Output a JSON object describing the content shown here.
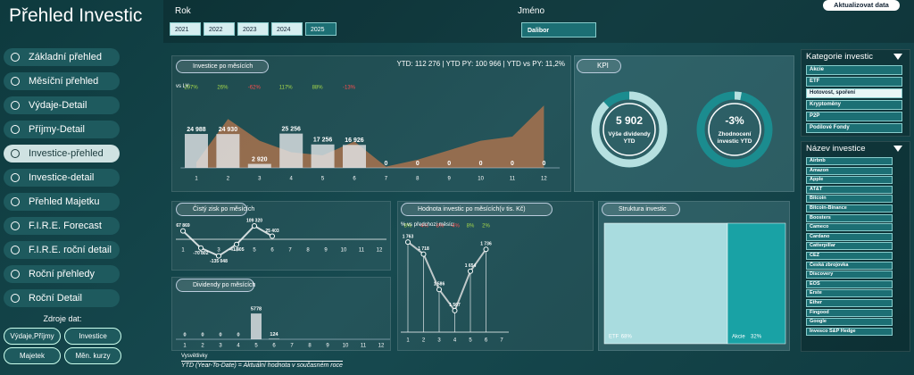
{
  "header": {
    "title": "Přehled Investic",
    "year_label": "Rok",
    "years": [
      "2021",
      "2022",
      "2023",
      "2024",
      "2025"
    ],
    "year_selected": [
      true,
      true,
      true,
      true,
      false
    ],
    "name_label": "Jméno",
    "name": "Dalibor",
    "refresh": "Aktualizovat data"
  },
  "nav": {
    "items": [
      "Základní přehled",
      "Měsíční přehled",
      "Výdaje-Detail",
      "Příjmy-Detail",
      "Investice-přehled",
      "Investice-detail",
      "Přehled Majetku",
      "F.I.R.E. Forecast",
      "F.I.R.E. roční detail",
      "Roční přehledy",
      "Roční Detail"
    ],
    "active_index": 4
  },
  "sources": {
    "title": "Zdroje dat:",
    "buttons": [
      "Výdaje,Příjmy",
      "Investice",
      "Majetek",
      "Měn. kurzy"
    ]
  },
  "kpi": {
    "title": "KPI",
    "cards": [
      {
        "value": "5 902",
        "label": "Výše dividendy YTD",
        "ring": 88
      },
      {
        "value": "-3%",
        "label": "Zhodnocení investic YTD",
        "ring": 3
      }
    ]
  },
  "chart_data": [
    {
      "type": "bar",
      "title": "Investice po měsících",
      "subtitle": "YTD: 112 276 | YTD PY: 100 966 | YTD vs PY: 11,2%",
      "comparison_label": "vs LY:",
      "comparison": [
        "297%",
        "26%",
        "-62%",
        "117%",
        "88%",
        "-13%",
        null,
        null,
        null,
        null,
        null,
        null
      ],
      "categories": [
        "1",
        "2",
        "3",
        "4",
        "5",
        "6",
        "7",
        "8",
        "9",
        "10",
        "11",
        "12"
      ],
      "values": [
        24988,
        24930,
        2920,
        25256,
        17256,
        16926,
        0,
        0,
        0,
        0,
        0,
        0
      ],
      "value_labels": [
        "24 988",
        "24 930",
        "2 920",
        "25 256",
        "17 256",
        "16 926",
        "0",
        "0",
        "0",
        "0",
        "0",
        "0"
      ],
      "color": "#e3e6e8",
      "py_values": [
        4000,
        36000,
        20000,
        11500,
        9200,
        19500,
        900,
        6000,
        13000,
        20000,
        23000,
        46000
      ],
      "py_color": "#a8724d",
      "ylim": [
        0,
        50000
      ]
    },
    {
      "type": "line",
      "title": "Čistý zisk po měsících",
      "categories": [
        "1",
        "2",
        "3",
        "4",
        "5",
        "6",
        "7",
        "8",
        "9",
        "10",
        "11",
        "12"
      ],
      "values": [
        67869,
        -70802,
        -135048,
        -41405,
        109320,
        25403,
        null,
        null,
        null,
        null,
        null,
        null
      ],
      "value_labels": [
        "67 869",
        "-70 802",
        "-135 048",
        "-41 405",
        "109 320",
        "25 403",
        null,
        null,
        null,
        null,
        null,
        null
      ],
      "color": "#ffffff",
      "ylim": [
        -160000,
        160000
      ]
    },
    {
      "type": "bar",
      "title": "Dividendy po měsících",
      "categories": [
        "1",
        "2",
        "3",
        "4",
        "5",
        "6",
        "7",
        "8",
        "9",
        "10",
        "11",
        "12"
      ],
      "values": [
        0,
        0,
        0,
        0,
        5778,
        124,
        null,
        null,
        null,
        null,
        null,
        null
      ],
      "color": "#e3e6e8",
      "ylim": [
        0,
        8000
      ]
    },
    {
      "type": "line",
      "title": "Hodnota investic po měsících(v tis. Kč)",
      "comparison_label": "% vs předchozí měsíc:",
      "comparison": [
        "8%",
        "-4%",
        "-8%",
        "-4%",
        "8%",
        "2%",
        null
      ],
      "categories": [
        "1",
        "2",
        "3",
        "4",
        "5",
        "6",
        "7"
      ],
      "values": [
        1763,
        1718,
        1586,
        1507,
        1654,
        1736,
        null
      ],
      "value_labels": [
        "1 763",
        "1 718",
        "1 586",
        "1 507",
        "1 654",
        "1 736",
        null
      ],
      "color": "#e6e6e6",
      "ylim": [
        1400,
        1800
      ]
    },
    {
      "type": "treemap",
      "title": "Struktura investic",
      "categories": [
        "ETF",
        "Akcie"
      ],
      "values": [
        68,
        32
      ],
      "value_labels": [
        "68%",
        "32%"
      ],
      "colors": [
        "#a9dcdf",
        "#19a2a5"
      ]
    }
  ],
  "slicers": [
    {
      "title": "Kategorie investic",
      "items": [
        "Akcie",
        "ETF",
        "Hotovost, spoření",
        "Kryptoměny",
        "P2P",
        "Podílové Fondy"
      ],
      "selected_index": 2
    },
    {
      "title": "Název investice",
      "items": [
        "Airbnb",
        "Amazon",
        "Apple",
        "AT&T",
        "Bitcoin",
        "Bitcoin-Binance",
        "Boosters",
        "Cameco",
        "Cardano",
        "Catterpillar",
        "CEZ",
        "Česká zbrojovka",
        "Discovery",
        "EOS",
        "Erste",
        "Ether",
        "Fingood",
        "Google",
        "Invesco S&P Hedge"
      ],
      "selected_index": -1
    }
  ],
  "footer": {
    "title": "Vysvětlivky",
    "text": "YTD (Year-To-Date) = Aktuální hodnota v současném roce"
  }
}
